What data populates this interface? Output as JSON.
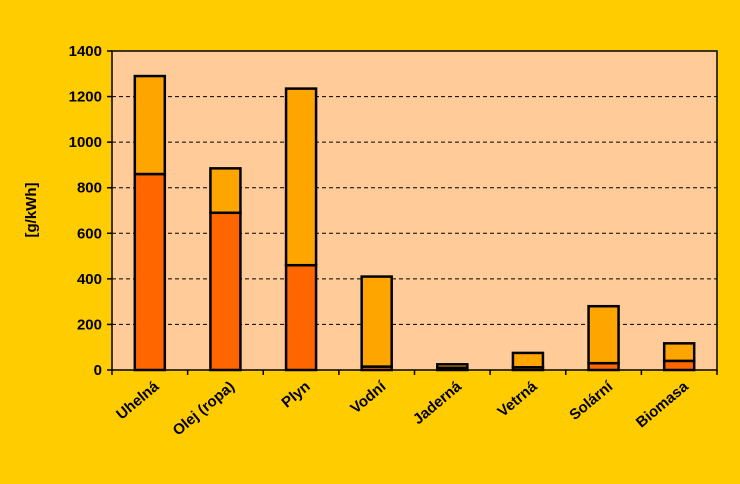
{
  "chart_data": {
    "type": "bar",
    "stacked": true,
    "ylabel": "[g/kWh]",
    "ylim": [
      0,
      1400
    ],
    "yticks": [
      0,
      200,
      400,
      600,
      800,
      1000,
      1200,
      1400
    ],
    "grid": true,
    "categories": [
      "Uhelná",
      "Olej (ropa)",
      "Plyn",
      "Vodní",
      "Jaderná",
      "Vetrná",
      "Solární",
      "Biomasa"
    ],
    "series": [
      {
        "values": [
          860,
          690,
          460,
          15,
          10,
          12,
          30,
          40
        ],
        "color": "#FF6600"
      },
      {
        "values": [
          430,
          195,
          775,
          395,
          15,
          63,
          250,
          77
        ],
        "color": "#FFA500"
      }
    ],
    "plot_background": "#FFCC99",
    "page_background": "#FFCC00"
  }
}
